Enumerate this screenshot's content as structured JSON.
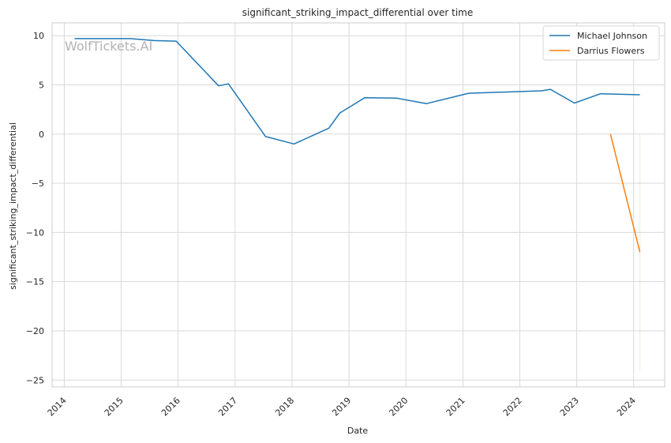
{
  "chart_data": {
    "type": "line",
    "title": "significant_striking_impact_differential over time",
    "xlabel": "Date",
    "ylabel": "significant_striking_impact_differential",
    "watermark": "WolfTickets.AI",
    "x_tick_labels": [
      "2014",
      "2015",
      "2016",
      "2017",
      "2018",
      "2019",
      "2020",
      "2021",
      "2022",
      "2023",
      "2024"
    ],
    "y_tick_labels": [
      "10",
      "5",
      "0",
      "−5",
      "−10",
      "−15",
      "−20",
      "−25"
    ],
    "y_ticks": [
      10,
      5,
      0,
      -5,
      -10,
      -15,
      -20,
      -25
    ],
    "xlim": [
      "2013-10-15",
      "2024-07-18"
    ],
    "ylim": [
      -25.7,
      11.3
    ],
    "grid": true,
    "legend_position": "top-right",
    "series": [
      {
        "name": "Michael Johnson",
        "color": "#1f77b4",
        "points": [
          [
            "2014-03-08",
            9.7
          ],
          [
            "2015-03-01",
            9.7
          ],
          [
            "2015-08-01",
            9.5
          ],
          [
            "2015-12-20",
            9.45
          ],
          [
            "2016-09-17",
            4.9
          ],
          [
            "2016-11-19",
            5.1
          ],
          [
            "2017-07-15",
            -0.25
          ],
          [
            "2018-01-14",
            -1.0
          ],
          [
            "2018-08-25",
            0.6
          ],
          [
            "2018-11-04",
            2.15
          ],
          [
            "2019-04-13",
            3.7
          ],
          [
            "2019-11-02",
            3.65
          ],
          [
            "2020-05-13",
            3.1
          ],
          [
            "2021-02-06",
            4.15
          ],
          [
            "2022-05-21",
            4.4
          ],
          [
            "2022-07-16",
            4.55
          ],
          [
            "2022-12-17",
            3.15
          ],
          [
            "2023-06-03",
            4.1
          ],
          [
            "2024-02-10",
            4.0
          ]
        ]
      },
      {
        "name": "Darrius Flowers",
        "color": "#ff7f0e",
        "points": [
          [
            "2023-08-05",
            0.0
          ],
          [
            "2024-02-10",
            -12.0
          ]
        ],
        "band": {
          "x": "2024-02-10",
          "y_range": [
            0,
            -24
          ]
        }
      }
    ]
  }
}
